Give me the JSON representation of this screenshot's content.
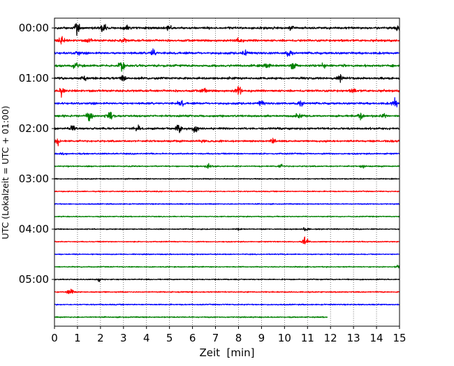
{
  "chart_data": {
    "type": "line",
    "subtype": "helicorder",
    "xlabel": "Zeit  [min]",
    "ylabel": "UTC (Lokalzeit = UTC + 01:00)",
    "xlim": [
      0,
      15
    ],
    "xticks": [
      "0",
      "1",
      "2",
      "3",
      "4",
      "5",
      "6",
      "7",
      "8",
      "9",
      "10",
      "11",
      "12",
      "13",
      "14",
      "15"
    ],
    "ylim_rows": [
      -0.78,
      23.72
    ],
    "yticks": [
      {
        "row": 0,
        "label": "00:00"
      },
      {
        "row": 4,
        "label": "01:00"
      },
      {
        "row": 8,
        "label": "02:00"
      },
      {
        "row": 12,
        "label": "03:00"
      },
      {
        "row": 16,
        "label": "04:00"
      },
      {
        "row": 20,
        "label": "05:00"
      }
    ],
    "grid": "vertical dotted at each minute",
    "row_interval_min": 15,
    "amplitude_unit": "fraction of row spacing",
    "traces": [
      {
        "row": 0,
        "color": "#000000",
        "noise": 0.17,
        "end": 15,
        "events": [
          [
            1.0,
            0.5
          ],
          [
            2.1,
            0.45
          ],
          [
            3.1,
            0.3
          ],
          [
            5.0,
            0.25
          ],
          [
            10.3,
            0.25
          ],
          [
            14.95,
            0.4
          ]
        ]
      },
      {
        "row": 1,
        "color": "#ff0000",
        "noise": 0.17,
        "end": 15,
        "events": [
          [
            0.3,
            0.3
          ],
          [
            1.5,
            0.2
          ],
          [
            3.0,
            0.2
          ],
          [
            8.0,
            0.3
          ]
        ]
      },
      {
        "row": 2,
        "color": "#0000ff",
        "noise": 0.17,
        "end": 15,
        "events": [
          [
            1.0,
            0.2
          ],
          [
            4.3,
            0.35
          ],
          [
            8.3,
            0.25
          ],
          [
            10.2,
            0.35
          ]
        ]
      },
      {
        "row": 3,
        "color": "#008000",
        "noise": 0.17,
        "end": 15,
        "events": [
          [
            0.9,
            0.25
          ],
          [
            2.9,
            0.6
          ],
          [
            9.2,
            0.35
          ],
          [
            10.4,
            0.3
          ],
          [
            11.7,
            0.2
          ]
        ]
      },
      {
        "row": 4,
        "color": "#000000",
        "noise": 0.17,
        "end": 15,
        "events": [
          [
            1.3,
            0.2
          ],
          [
            3.0,
            0.3
          ],
          [
            12.4,
            0.3
          ]
        ]
      },
      {
        "row": 5,
        "color": "#ff0000",
        "noise": 0.17,
        "end": 15,
        "events": [
          [
            0.3,
            0.3
          ],
          [
            6.5,
            0.2
          ],
          [
            8.0,
            0.5
          ],
          [
            13.0,
            0.2
          ]
        ]
      },
      {
        "row": 6,
        "color": "#0000ff",
        "noise": 0.16,
        "end": 15,
        "events": [
          [
            5.5,
            0.25
          ],
          [
            9.0,
            0.2
          ],
          [
            10.7,
            0.3
          ],
          [
            14.8,
            0.4
          ]
        ]
      },
      {
        "row": 7,
        "color": "#008000",
        "noise": 0.16,
        "end": 15,
        "events": [
          [
            1.5,
            0.4
          ],
          [
            2.4,
            0.35
          ],
          [
            10.6,
            0.3
          ],
          [
            13.3,
            0.3
          ],
          [
            14.3,
            0.2
          ]
        ]
      },
      {
        "row": 8,
        "color": "#000000",
        "noise": 0.16,
        "end": 15,
        "events": [
          [
            0.8,
            0.3
          ],
          [
            3.6,
            0.25
          ],
          [
            5.4,
            0.45
          ],
          [
            6.1,
            0.3
          ]
        ]
      },
      {
        "row": 9,
        "color": "#ff0000",
        "noise": 0.15,
        "end": 15,
        "events": [
          [
            0.1,
            0.3
          ],
          [
            6.5,
            0.15
          ],
          [
            9.5,
            0.2
          ]
        ]
      },
      {
        "row": 10,
        "color": "#0000ff",
        "noise": 0.11,
        "end": 15,
        "events": [
          [
            0.4,
            0.15
          ]
        ]
      },
      {
        "row": 11,
        "color": "#008000",
        "noise": 0.1,
        "end": 15,
        "events": [
          [
            6.7,
            0.2
          ],
          [
            9.8,
            0.15
          ],
          [
            13.4,
            0.15
          ]
        ]
      },
      {
        "row": 12,
        "color": "#000000",
        "noise": 0.08,
        "end": 15,
        "events": []
      },
      {
        "row": 13,
        "color": "#ff0000",
        "noise": 0.08,
        "end": 15,
        "events": []
      },
      {
        "row": 14,
        "color": "#0000ff",
        "noise": 0.08,
        "end": 15,
        "events": []
      },
      {
        "row": 15,
        "color": "#008000",
        "noise": 0.08,
        "end": 15,
        "events": []
      },
      {
        "row": 16,
        "color": "#000000",
        "noise": 0.08,
        "end": 15,
        "events": [
          [
            8.0,
            0.1
          ],
          [
            10.9,
            0.25
          ]
        ]
      },
      {
        "row": 17,
        "color": "#ff0000",
        "noise": 0.08,
        "end": 15,
        "events": [
          [
            10.9,
            0.45
          ]
        ]
      },
      {
        "row": 18,
        "color": "#0000ff",
        "noise": 0.08,
        "end": 15,
        "events": []
      },
      {
        "row": 19,
        "color": "#008000",
        "noise": 0.08,
        "end": 15,
        "events": [
          [
            14.9,
            0.15
          ]
        ]
      },
      {
        "row": 20,
        "color": "#000000",
        "noise": 0.08,
        "end": 15,
        "events": [
          [
            1.9,
            0.12
          ]
        ]
      },
      {
        "row": 21,
        "color": "#ff0000",
        "noise": 0.09,
        "end": 15,
        "events": [
          [
            0.7,
            0.35
          ]
        ]
      },
      {
        "row": 22,
        "color": "#0000ff",
        "noise": 0.09,
        "end": 15,
        "events": []
      },
      {
        "row": 23,
        "color": "#008000",
        "noise": 0.09,
        "end": 11.87,
        "events": []
      }
    ]
  }
}
